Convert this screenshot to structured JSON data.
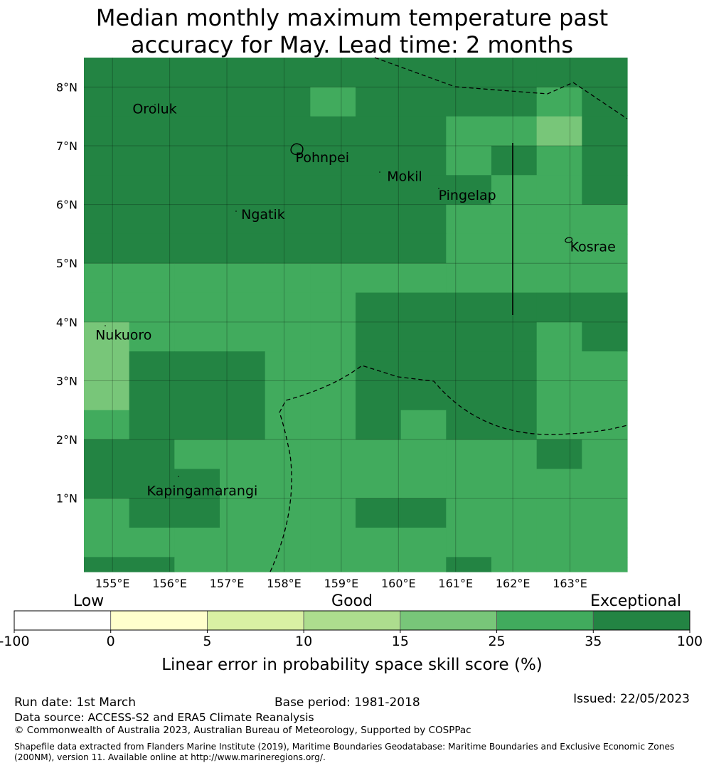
{
  "title": {
    "line1": "Median monthly maximum temperature past",
    "line2": "accuracy for May. Lead time: 2 months"
  },
  "map": {
    "lat_range": [
      -0.25,
      8.5
    ],
    "lon_range": [
      154.5,
      164.0
    ],
    "lat_ticks": [
      {
        "value": 8,
        "label": "8°N"
      },
      {
        "value": 7,
        "label": "7°N"
      },
      {
        "value": 6,
        "label": "6°N"
      },
      {
        "value": 5,
        "label": "5°N"
      },
      {
        "value": 4,
        "label": "4°N"
      },
      {
        "value": 3,
        "label": "3°N"
      },
      {
        "value": 2,
        "label": "2°N"
      },
      {
        "value": 1,
        "label": "1°N"
      }
    ],
    "lon_ticks": [
      {
        "value": 155,
        "label": "155°E"
      },
      {
        "value": 156,
        "label": "156°E"
      },
      {
        "value": 157,
        "label": "157°E"
      },
      {
        "value": 158,
        "label": "158°E"
      },
      {
        "value": 159,
        "label": "159°E"
      },
      {
        "value": 160,
        "label": "160°E"
      },
      {
        "value": 161,
        "label": "161°E"
      },
      {
        "value": 162,
        "label": "162°E"
      },
      {
        "value": 163,
        "label": "163°E"
      }
    ],
    "grid_cols": 12,
    "grid_rows_lat_top": [
      8.5,
      8.0,
      7.5,
      7.0,
      6.5,
      6.0,
      5.5,
      5.0,
      4.5,
      4.0,
      3.5,
      3.0,
      2.5,
      2.0,
      1.5,
      1.0,
      0.5,
      0.0
    ],
    "skill_class_grid": [
      "FFFFFFFFFFFF",
      "FFFFFEFFFFEF",
      "FFFFFFFFEEDF",
      "FFFFFFFFEFEF",
      "FFFFFFFFFEEF",
      "FFFFFFFFEEEE",
      "FFFFFFFFEEEE",
      "EEEEEEEEEEEE",
      "EEEEEEFFFFFF",
      "DEEEEEFFFFEF",
      "DFFFEEFFFFEE",
      "DFFFEEFFFFEE",
      "EFFFEEFEFFEE",
      "FFEEEEEEEEFE",
      "FFFEEEEEEEEE",
      "EFFEEEFFEEEE",
      "EEEEEEEEEEEE",
      "FFEEEEEEFEEE"
    ],
    "places": [
      {
        "name": "Oroluk",
        "lon": 155.35,
        "lat": 7.55
      },
      {
        "name": "Pohnpei",
        "lon": 158.2,
        "lat": 6.72
      },
      {
        "name": "Mokil",
        "lon": 159.8,
        "lat": 6.4
      },
      {
        "name": "Pingelap",
        "lon": 160.7,
        "lat": 6.08
      },
      {
        "name": "Ngatik",
        "lon": 157.25,
        "lat": 5.75
      },
      {
        "name": "Kosrae",
        "lon": 163.0,
        "lat": 5.2
      },
      {
        "name": "Nukuoro",
        "lon": 154.7,
        "lat": 3.7
      },
      {
        "name": "Kapingamarangi",
        "lon": 155.6,
        "lat": 1.05
      }
    ]
  },
  "colorbar": {
    "categories": [
      {
        "label": "Low",
        "at": 0.11
      },
      {
        "label": "Good",
        "at": 0.5
      },
      {
        "label": "Exceptional",
        "at": 0.92
      }
    ],
    "ticks": [
      "-100",
      "0",
      "5",
      "10",
      "15",
      "25",
      "35",
      "100"
    ],
    "colors": [
      "#ffffff",
      "#ffffcc",
      "#d9f0a3",
      "#addd8e",
      "#78c679",
      "#41ab5d",
      "#238443"
    ],
    "title": "Linear error in probability space skill score (%)"
  },
  "class_colors": {
    "D": "#78c679",
    "E": "#41ab5d",
    "F": "#238443"
  },
  "footer": {
    "run_date": "Run date: 1st March",
    "base_period": "Base period: 1981-2018",
    "issued": "Issued: 22/05/2023",
    "data_source": "Data source: ACCESS-S2 and ERA5 Climate Reanalysis",
    "copyright": "© Commonwealth of Australia 2023, Australian Bureau of Meteorology, Supported by COSPPac",
    "shapefile_line1": "Shapefile data extracted from Flanders Marine Institute (2019), Maritime Boundaries Geodatabase: Maritime Boundaries and Exclusive Economic Zones",
    "shapefile_line2": "(200NM), version 11. Available online at http://www.marineregions.org/."
  }
}
